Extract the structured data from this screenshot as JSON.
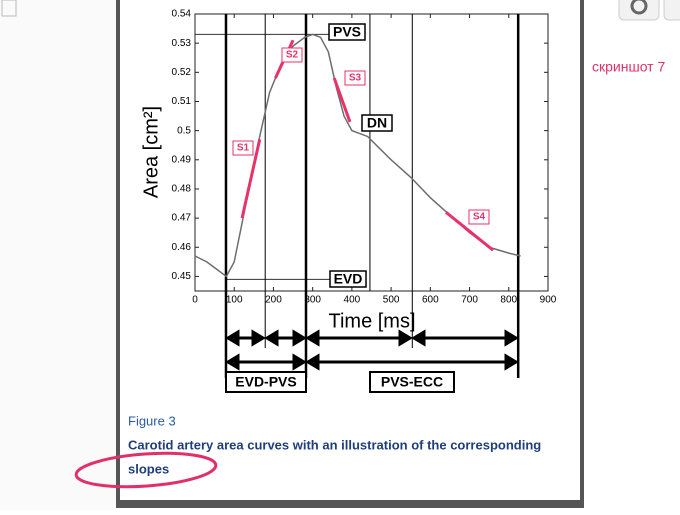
{
  "chart_data": {
    "type": "line",
    "y_label": "Area [cm²]",
    "x_label": "Time [ms]",
    "xlim": [
      0,
      900
    ],
    "xticks": [
      0,
      100,
      200,
      300,
      400,
      500,
      600,
      700,
      800,
      900
    ],
    "ylim": [
      0.445,
      0.54
    ],
    "yticks": [
      0.45,
      0.46,
      0.47,
      0.48,
      0.49,
      0.5,
      0.51,
      0.52,
      0.53,
      0.54
    ],
    "x": [
      0,
      30,
      60,
      80,
      100,
      130,
      160,
      190,
      220,
      250,
      280,
      300,
      320,
      340,
      360,
      380,
      400,
      440,
      500,
      550,
      600,
      650,
      700,
      750,
      800,
      830
    ],
    "series": [
      {
        "color": "#6e6e6e",
        "values": [
          0.457,
          0.455,
          0.452,
          0.45,
          0.455,
          0.475,
          0.495,
          0.513,
          0.523,
          0.529,
          0.532,
          0.533,
          0.532,
          0.527,
          0.515,
          0.505,
          0.5,
          0.498,
          0.49,
          0.484,
          0.477,
          0.471,
          0.465,
          0.46,
          0.458,
          0.457
        ]
      }
    ],
    "slope_color": "#e8336a",
    "slopes": [
      {
        "label": "S1",
        "x": [
          120,
          165
        ],
        "values": [
          0.47,
          0.497
        ]
      },
      {
        "label": "S2",
        "x": [
          205,
          250
        ],
        "values": [
          0.518,
          0.531
        ]
      },
      {
        "label": "S3",
        "x": [
          355,
          395
        ],
        "values": [
          0.518,
          0.503
        ]
      },
      {
        "label": "S4",
        "x": [
          640,
          760
        ],
        "values": [
          0.472,
          0.459
        ]
      }
    ],
    "annotations": [
      "PVS",
      "DN",
      "EVD"
    ],
    "markers": [
      {
        "value": 79,
        "bold": true
      },
      {
        "value": 179,
        "bold": false
      },
      {
        "value": 283,
        "bold": true
      },
      {
        "value": 446,
        "bold": false
      },
      {
        "value": 554,
        "bold": false
      },
      {
        "value": 824,
        "bold": true
      }
    ],
    "interval_labels": [
      "EVD-PVS",
      "PVS-ECC"
    ]
  },
  "figure": {
    "label": "Figure 3",
    "caption": [
      "Carotid artery area curves with an illustration of the corresponding",
      "slopes"
    ]
  },
  "side_note": "скриншот 7"
}
